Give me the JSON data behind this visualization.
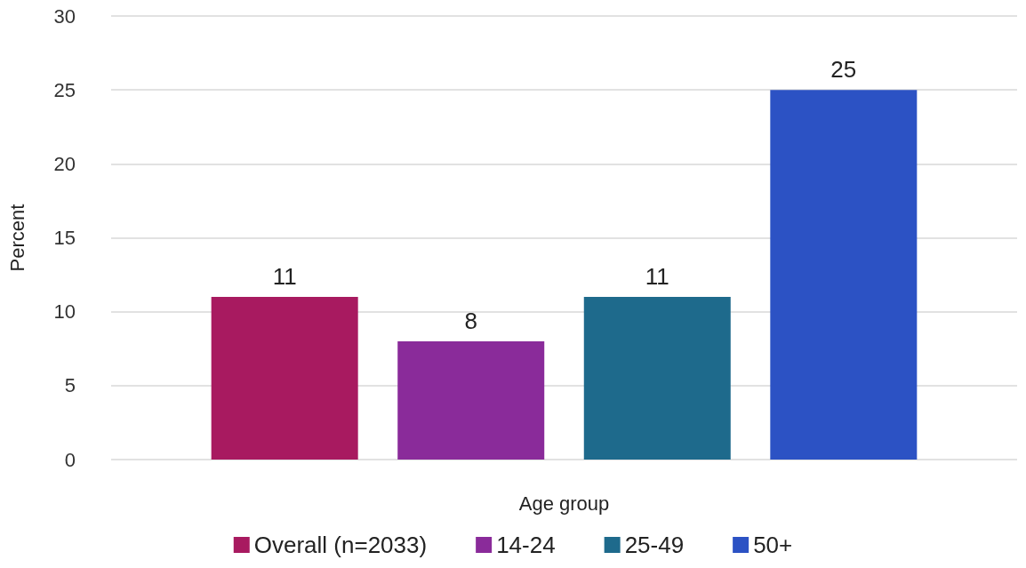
{
  "chart_data": {
    "type": "bar",
    "xlabel": "Age group",
    "ylabel": "Percent",
    "categories": [
      null
    ],
    "series": [
      {
        "name": "Overall (n=2033)",
        "color": "#a81a60",
        "values": [
          11
        ]
      },
      {
        "name": "14-24",
        "color": "#8a2b9a",
        "values": [
          8
        ]
      },
      {
        "name": "25-49",
        "color": "#1e6a8c",
        "values": [
          11
        ]
      },
      {
        "name": "50+",
        "color": "#2c52c4",
        "values": [
          25
        ]
      }
    ],
    "ylim": [
      0,
      30
    ],
    "yticks": [
      0,
      5,
      10,
      15,
      20,
      25,
      30
    ],
    "grid": "y",
    "legend": "bottom",
    "data_labels": true
  }
}
